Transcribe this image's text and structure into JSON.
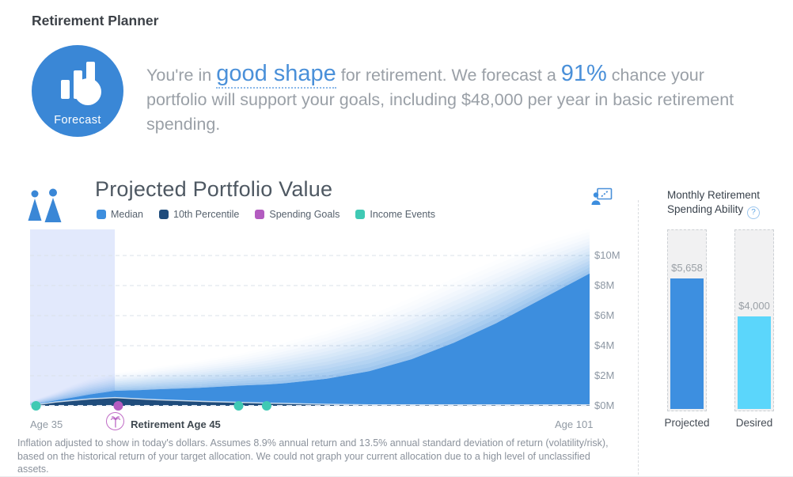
{
  "page": {
    "title": "Retirement Planner"
  },
  "forecast": {
    "badge_label": "Forecast",
    "text_prefix": "You're in ",
    "highlight": "good shape",
    "text_mid": " for retirement. We forecast a ",
    "percent": "91%",
    "text_suffix": " chance your portfolio will support your goals, including $48,000 per year in basic retirement spending."
  },
  "chart": {
    "title": "Projected Portfolio Value",
    "legend": [
      {
        "label": "Median",
        "color": "#3d8ede"
      },
      {
        "label": "10th Percentile",
        "color": "#1f4c7c"
      },
      {
        "label": "Spending Goals",
        "color": "#b35cc0"
      },
      {
        "label": "Income Events",
        "color": "#3fc9b4"
      }
    ],
    "x_left_label": "Age 35",
    "retirement_label": "Retirement Age 45",
    "x_right_label": "Age 101"
  },
  "chart_data": [
    {
      "type": "area",
      "title": "Projected Portfolio Value",
      "x_axis": "Age",
      "x_range": [
        35,
        101
      ],
      "y_unit": "USD millions (today's dollars)",
      "ylim": [
        0,
        11.7
      ],
      "y_ticks_m": [
        0,
        2,
        4,
        6,
        8,
        10
      ],
      "y_tick_labels": [
        "$0M",
        "$2M",
        "$4M",
        "$6M",
        "$8M",
        "$10M"
      ],
      "grid": "dashed horizontal",
      "x": [
        35,
        38,
        40,
        42,
        45,
        48,
        50,
        55,
        60,
        63,
        65,
        70,
        75,
        80,
        85,
        90,
        95,
        101
      ],
      "series": [
        {
          "name": "Median",
          "color": "#3d8ede",
          "values_m": [
            0.05,
            0.35,
            0.55,
            0.75,
            1.0,
            1.05,
            1.1,
            1.2,
            1.35,
            1.42,
            1.5,
            1.8,
            2.3,
            3.1,
            4.2,
            5.5,
            7.0,
            8.8
          ]
        },
        {
          "name": "Forecast range top (fan fade)",
          "color": "#3d8ede",
          "values_m": [
            0.3,
            0.9,
            1.4,
            1.8,
            2.2,
            2.4,
            2.6,
            3.0,
            3.5,
            3.9,
            4.2,
            5.0,
            6.0,
            7.2,
            8.5,
            9.7,
            10.8,
            11.8
          ]
        },
        {
          "name": "10th Percentile",
          "color": "#1f4c7c",
          "values_m": [
            0.02,
            0.25,
            0.35,
            0.45,
            0.55,
            0.45,
            0.4,
            0.3,
            0.22,
            0.18,
            0.16,
            0.1,
            0.07,
            0.07,
            0.07,
            0.07,
            0.07,
            0.07
          ]
        }
      ],
      "pre_retirement_band_ages": [
        35,
        45
      ],
      "retirement_age": 45,
      "events": [
        {
          "type": "income",
          "age": 35.7
        },
        {
          "type": "spending_goal",
          "age": 45.4
        },
        {
          "type": "income",
          "age": 59.6
        },
        {
          "type": "income",
          "age": 62.9
        }
      ]
    },
    {
      "type": "bar",
      "title": "Monthly Retirement Spending Ability",
      "categories": [
        "Projected",
        "Desired"
      ],
      "values": [
        5658,
        4000
      ],
      "value_labels": [
        "$5,658",
        "$4,000"
      ],
      "colors": [
        "#3d8fe0",
        "#5bd6fb"
      ],
      "ylim": [
        0,
        7800
      ]
    }
  ],
  "spending_panel": {
    "title": "Monthly Retirement Spending Ability"
  },
  "footnote": {
    "text": "Inflation adjusted to show in today's dollars. Assumes 8.9% annual return and 13.5% annual standard deviation of return (volatility/risk), based on the historical return of your target allocation. We could not graph your current allocation due to a high level of unclassified assets."
  },
  "colors": {
    "accent_blue": "#3d8ede",
    "badge_blue": "#3a87d6",
    "navy": "#1f4c7c",
    "purple": "#b35cc0",
    "teal": "#3fc9b4",
    "desired_cyan": "#5bd6fb",
    "band_lavender": "#e2e9fc"
  },
  "icons": {
    "forecast_badge": "bar-chart-with-circle",
    "chart_header": "two-people",
    "chart_corner": "presentation-trend",
    "help": "question-mark-circle",
    "retirement_marker": "palm-tree-circle"
  }
}
